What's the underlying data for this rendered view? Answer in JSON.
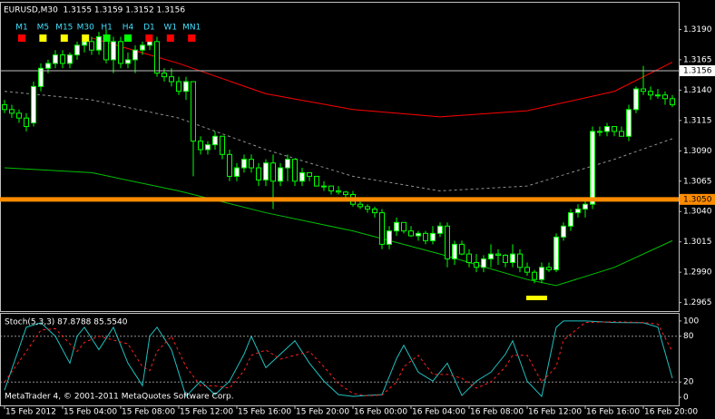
{
  "chart_data": [
    {
      "type": "candlestick",
      "title": "EURUSD,M30  1.3155 1.3159 1.3152 1.3156",
      "timeframes": [
        {
          "label": "M1",
          "color": "#ff0000"
        },
        {
          "label": "M5",
          "color": "#ffff00"
        },
        {
          "label": "M15",
          "color": "#ffff00"
        },
        {
          "label": "M30",
          "color": "#ffff00"
        },
        {
          "label": "H1",
          "color": "#00ff00"
        },
        {
          "label": "H4",
          "color": "#00ff00"
        },
        {
          "label": "D1",
          "color": "#ff0000"
        },
        {
          "label": "W1",
          "color": "#ff0000"
        },
        {
          "label": "MN1",
          "color": "#ff0000"
        }
      ],
      "xlim": [
        -0.625,
        92.875
      ],
      "ylim": [
        1.2958,
        1.3212
      ],
      "yticks": [
        {
          "value": 1.319,
          "label": "1.3190"
        },
        1.3165,
        {
          "value": 1.314,
          "label": "1.3140"
        },
        1.3115,
        {
          "value": 1.309,
          "label": "1.3090"
        },
        1.3065,
        {
          "value": 1.304,
          "label": "1.3040"
        },
        1.3015,
        {
          "value": 1.299,
          "label": "1.2990"
        },
        1.2965
      ],
      "bull_color": "#ffffff",
      "bear_color": "#000000",
      "wick_color": "#00ff00",
      "open": [
        1.3128,
        1.3124,
        1.3121,
        1.3117,
        1.3113,
        1.3143,
        1.3158,
        1.3162,
        1.3169,
        1.3162,
        1.3169,
        1.3177,
        1.318,
        1.3173,
        1.3184,
        1.3165,
        1.318,
        1.3162,
        1.3165,
        1.3173,
        1.3177,
        1.318,
        1.3154,
        1.3151,
        1.3147,
        1.3139,
        1.3147,
        1.3098,
        1.3091,
        1.3095,
        1.3102,
        1.3087,
        1.3069,
        1.3076,
        1.3083,
        1.3076,
        1.3066,
        1.308,
        1.3065,
        1.3076,
        1.3083,
        1.3065,
        1.3072,
        1.3069,
        1.3061,
        1.3061,
        1.3057,
        1.3056,
        1.3054,
        1.3046,
        1.3044,
        1.3042,
        1.3039,
        1.3013,
        1.3024,
        1.3031,
        1.3024,
        1.302,
        1.3022,
        1.3016,
        1.3022,
        1.3028,
        1.3001,
        1.3013,
        1.3005,
        1.2998,
        1.2994,
        1.3001,
        1.3005,
        1.3004,
        1.2998,
        1.3005,
        1.2994,
        1.299,
        1.2984,
        1.2994,
        1.2992,
        1.3019,
        1.3028,
        1.3039,
        1.3042,
        1.3046,
        1.3106,
        1.3106,
        1.311,
        1.3106,
        1.3102,
        1.3124,
        1.3141,
        1.3139,
        1.3136,
        1.3136,
        1.3133
      ],
      "high": [
        1.3132,
        1.3128,
        1.3124,
        1.3121,
        1.3147,
        1.3162,
        1.3165,
        1.3173,
        1.3173,
        1.3171,
        1.318,
        1.3184,
        1.3184,
        1.3188,
        1.319,
        1.3184,
        1.3184,
        1.3171,
        1.3177,
        1.318,
        1.3184,
        1.3184,
        1.3158,
        1.3158,
        1.3151,
        1.3151,
        1.3147,
        1.3102,
        1.3098,
        1.3106,
        1.3102,
        1.3091,
        1.308,
        1.3087,
        1.3087,
        1.308,
        1.3083,
        1.3087,
        1.308,
        1.3087,
        1.3083,
        1.3076,
        1.3072,
        1.3069,
        1.3065,
        1.3061,
        1.3061,
        1.3057,
        1.3057,
        1.305,
        1.3046,
        1.3044,
        1.3042,
        1.3028,
        1.3035,
        1.3031,
        1.3028,
        1.3024,
        1.3024,
        1.3028,
        1.3031,
        1.3031,
        1.3016,
        1.3016,
        1.3009,
        1.3005,
        1.3004,
        1.3013,
        1.3009,
        1.3005,
        1.3013,
        1.3009,
        1.2998,
        1.2992,
        1.2998,
        1.2998,
        1.3022,
        1.3031,
        1.3042,
        1.3046,
        1.305,
        1.311,
        1.311,
        1.3113,
        1.311,
        1.311,
        1.3128,
        1.3143,
        1.316,
        1.3143,
        1.3141,
        1.3139,
        1.3136
      ],
      "low": [
        1.3121,
        1.3117,
        1.3113,
        1.3106,
        1.311,
        1.3139,
        1.3154,
        1.3158,
        1.3158,
        1.3158,
        1.3165,
        1.3171,
        1.3169,
        1.3169,
        1.3162,
        1.3154,
        1.3158,
        1.3158,
        1.3154,
        1.3169,
        1.3173,
        1.3151,
        1.3147,
        1.3143,
        1.3136,
        1.3132,
        1.3069,
        1.3087,
        1.3087,
        1.3091,
        1.3083,
        1.3065,
        1.3065,
        1.3072,
        1.3072,
        1.3061,
        1.3061,
        1.3042,
        1.3061,
        1.3065,
        1.3061,
        1.3061,
        1.3065,
        1.3061,
        1.3057,
        1.3054,
        1.3054,
        1.305,
        1.3044,
        1.3042,
        1.3039,
        1.3035,
        1.3009,
        1.3009,
        1.302,
        1.3022,
        1.3019,
        1.3016,
        1.3013,
        1.3013,
        1.3019,
        1.2994,
        1.2996,
        1.3004,
        1.2994,
        1.299,
        1.299,
        1.2994,
        1.2996,
        1.2994,
        1.2994,
        1.299,
        1.2987,
        1.2981,
        1.2981,
        1.299,
        1.299,
        1.3016,
        1.3024,
        1.3035,
        1.3035,
        1.3042,
        1.3102,
        1.3102,
        1.3102,
        1.3102,
        1.3098,
        1.3121,
        1.3136,
        1.3132,
        1.3133,
        1.3128,
        1.3126
      ],
      "close": [
        1.3124,
        1.3121,
        1.3117,
        1.311,
        1.3143,
        1.3158,
        1.3162,
        1.3169,
        1.3162,
        1.3169,
        1.3177,
        1.318,
        1.3173,
        1.3184,
        1.3165,
        1.318,
        1.3162,
        1.3165,
        1.3173,
        1.3177,
        1.318,
        1.3154,
        1.3151,
        1.3147,
        1.3139,
        1.3147,
        1.3098,
        1.3091,
        1.3095,
        1.3102,
        1.3087,
        1.3069,
        1.3076,
        1.3083,
        1.3076,
        1.3066,
        1.308,
        1.3065,
        1.3076,
        1.3083,
        1.3065,
        1.3072,
        1.3069,
        1.3061,
        1.3061,
        1.3057,
        1.3056,
        1.3054,
        1.3046,
        1.3044,
        1.3042,
        1.3039,
        1.3013,
        1.3024,
        1.3031,
        1.3024,
        1.302,
        1.3022,
        1.3016,
        1.3022,
        1.3028,
        1.3001,
        1.3013,
        1.3005,
        1.2998,
        1.2994,
        1.3001,
        1.3005,
        1.3004,
        1.2998,
        1.3005,
        1.2994,
        1.299,
        1.2984,
        1.2994,
        1.2992,
        1.3019,
        1.3028,
        1.3039,
        1.3042,
        1.3046,
        1.3106,
        1.3106,
        1.311,
        1.3106,
        1.3102,
        1.3124,
        1.3141,
        1.3139,
        1.3136,
        1.3136,
        1.3133,
        1.3128
      ],
      "series": [
        {
          "color": "#ff0000",
          "dashed": false,
          "x": [
            12,
            24,
            36,
            48,
            60,
            72,
            84,
            92
          ],
          "values": [
            1.3183,
            1.3162,
            1.3137,
            1.3124,
            1.3118,
            1.3123,
            1.3139,
            1.3163
          ]
        },
        {
          "color": "#909090",
          "dashed": true,
          "x": [
            0,
            12,
            24,
            36,
            48,
            60,
            72,
            84,
            92
          ],
          "values": [
            1.3139,
            1.3132,
            1.3117,
            1.3091,
            1.3069,
            1.3057,
            1.3061,
            1.3083,
            1.31
          ]
        },
        {
          "color": "#00c000",
          "dashed": false,
          "x": [
            0,
            12,
            24,
            36,
            48,
            60,
            72,
            76,
            84,
            92
          ],
          "values": [
            1.3076,
            1.3072,
            1.3057,
            1.3039,
            1.3024,
            1.3005,
            1.2984,
            1.2979,
            1.2994,
            1.3016
          ]
        }
      ],
      "hlines": [
        {
          "value": 1.3156,
          "label": "1.3156",
          "color": "#c0c0c0",
          "weight": "thin"
        },
        {
          "value": 1.305,
          "label": "1.3050",
          "color": "#ff8c00",
          "weight": "bold"
        }
      ]
    },
    {
      "type": "line",
      "title": "Stoch(5,3,3) 87.8788 85.5540",
      "annotation": "MetaTrader 4, © 2001-2011 MetaQuotes Software Corp.",
      "xlim": [
        -0.625,
        92.875
      ],
      "ylim": [
        -10.6,
        109.4
      ],
      "yticks": [
        100,
        80,
        20,
        0
      ],
      "levels": [
        80,
        20
      ],
      "xticks": [
        {
          "value": 0,
          "label": "15 Feb 2012"
        },
        {
          "value": 8,
          "label": "15 Feb 04:00"
        },
        {
          "value": 16,
          "label": "15 Feb 08:00"
        },
        {
          "value": 24,
          "label": "15 Feb 12:00"
        },
        {
          "value": 32,
          "label": "15 Feb 16:00"
        },
        {
          "value": 40,
          "label": "15 Feb 20:00"
        },
        {
          "value": 48,
          "label": "16 Feb 00:00"
        },
        {
          "value": 56,
          "label": "16 Feb 04:00"
        },
        {
          "value": 64,
          "label": "16 Feb 08:00"
        },
        {
          "value": 72,
          "label": "16 Feb 12:00"
        },
        {
          "value": 80,
          "label": "16 Feb 16:00"
        },
        {
          "value": 88,
          "label": "16 Feb 20:00"
        }
      ],
      "series": [
        {
          "color": "#20c0c0",
          "dashed": false,
          "x": [
            0,
            3,
            5,
            7,
            9,
            10,
            11,
            13,
            15,
            17,
            19,
            20,
            21,
            23,
            25,
            27,
            29,
            31,
            33,
            34,
            36,
            38,
            40,
            42,
            44,
            46,
            48,
            50,
            52,
            54,
            55,
            57,
            59,
            61,
            63,
            65,
            67,
            69,
            70,
            72,
            74,
            76,
            77,
            80,
            84,
            88,
            90,
            92
          ],
          "values": [
            9.4,
            91.8,
            97.6,
            80,
            44.7,
            80,
            91.8,
            62.4,
            91.8,
            44.7,
            15.3,
            80,
            91.8,
            62.4,
            1.2,
            21.2,
            3.5,
            21.2,
            56.5,
            80,
            38.8,
            56.5,
            74.1,
            44.7,
            21.2,
            3.5,
            1.2,
            2.4,
            3.5,
            50.6,
            68.2,
            32.9,
            21.2,
            44.7,
            2.4,
            21.2,
            32.9,
            56.5,
            74.1,
            21.2,
            1.2,
            91.8,
            100,
            100,
            98,
            97.6,
            92,
            25
          ]
        },
        {
          "color": "#ff2020",
          "dashed": true,
          "x": [
            0,
            3,
            5,
            7,
            9,
            10,
            11,
            13,
            15,
            17,
            19,
            20,
            21,
            23,
            25,
            27,
            29,
            31,
            33,
            34,
            36,
            38,
            40,
            42,
            44,
            46,
            48,
            50,
            52,
            54,
            55,
            57,
            59,
            61,
            63,
            65,
            67,
            69,
            70,
            72,
            74,
            76,
            77,
            80,
            84,
            88,
            90,
            92
          ],
          "values": [
            20,
            60,
            88,
            90,
            70,
            60,
            72,
            80,
            75,
            70,
            40,
            35,
            60,
            80,
            40,
            15,
            15,
            12,
            35,
            55,
            62,
            50,
            55,
            60,
            40,
            18,
            5,
            2,
            3,
            20,
            40,
            55,
            30,
            30,
            25,
            12,
            20,
            40,
            55,
            55,
            20,
            40,
            75,
            98,
            99,
            98,
            96,
            60
          ]
        }
      ]
    }
  ]
}
